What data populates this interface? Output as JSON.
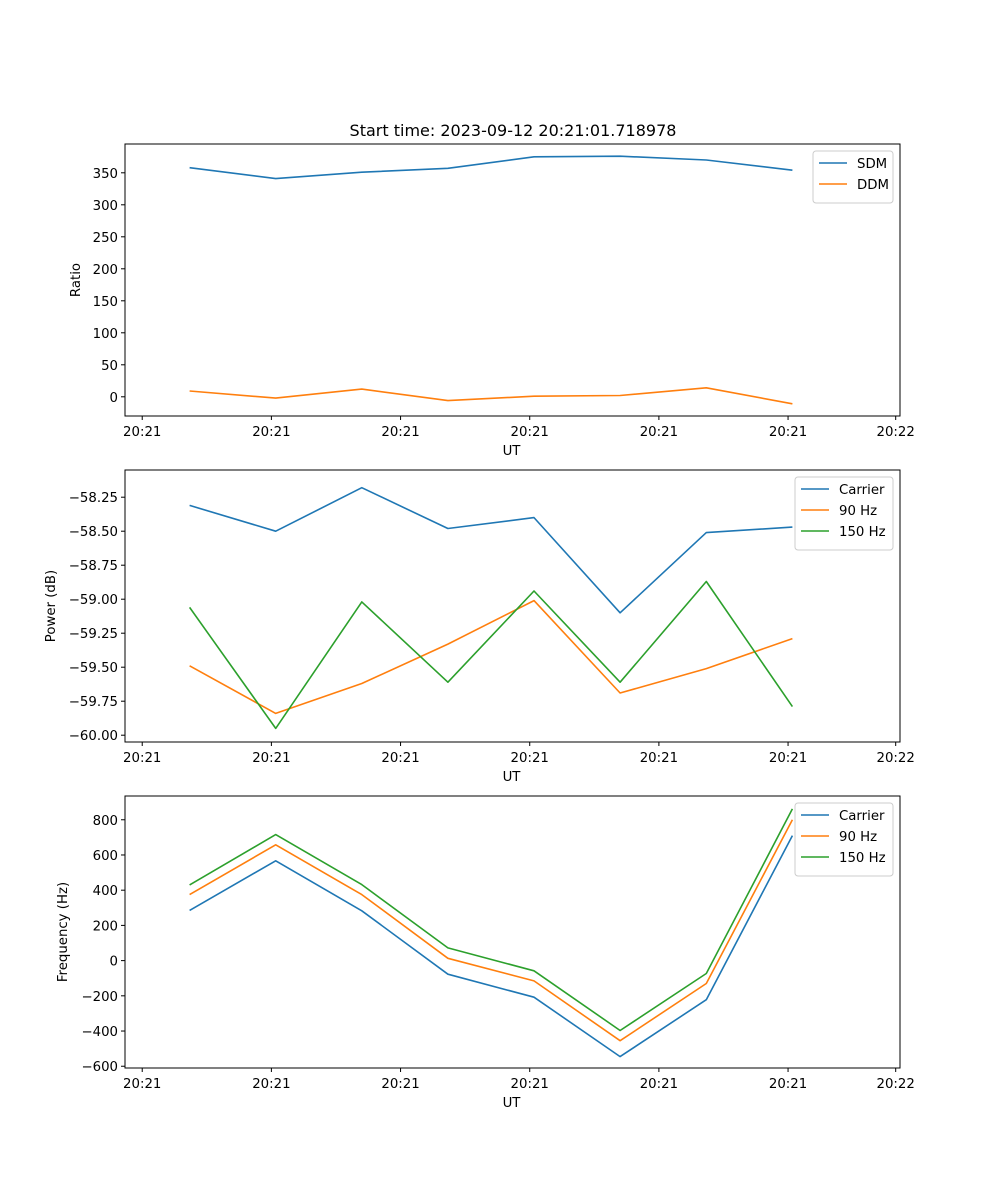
{
  "colors": {
    "series": [
      "#1f77b4",
      "#ff7f0e",
      "#2ca02c"
    ],
    "axis": "#000000",
    "legend_border": "#cccccc"
  },
  "figure": {
    "title": "Start time: 2023-09-12 20:21:01.718978"
  },
  "chart_data": [
    {
      "type": "line",
      "title": "Start time: 2023-09-12 20:21:01.718978",
      "xlabel": "UT",
      "ylabel": "Ratio",
      "x": [
        1,
        2,
        3,
        4,
        5,
        6,
        7,
        8
      ],
      "xlim": [
        0.25,
        9.25
      ],
      "xticks": [
        0.45,
        1.95,
        3.45,
        4.95,
        6.45,
        7.95,
        9.2
      ],
      "xtick_labels": [
        "20:21",
        "20:21",
        "20:21",
        "20:21",
        "20:21",
        "20:21",
        "20:22"
      ],
      "ylim": [
        -30,
        395
      ],
      "yticks": [
        0,
        50,
        100,
        150,
        200,
        250,
        300,
        350
      ],
      "ytick_labels": [
        "0",
        "50",
        "100",
        "150",
        "200",
        "250",
        "300",
        "350"
      ],
      "legend_position": "top-right",
      "series": [
        {
          "name": "SDM",
          "values": [
            358,
            341,
            351,
            357,
            375,
            376,
            370,
            354
          ]
        },
        {
          "name": "DDM",
          "values": [
            9,
            -2,
            12,
            -6,
            1,
            2,
            14,
            -11
          ]
        }
      ]
    },
    {
      "type": "line",
      "title": "",
      "xlabel": "UT",
      "ylabel": "Power (dB)",
      "x": [
        1,
        2,
        3,
        4,
        5,
        6,
        7,
        8
      ],
      "xlim": [
        0.25,
        9.25
      ],
      "xticks": [
        0.45,
        1.95,
        3.45,
        4.95,
        6.45,
        7.95,
        9.2
      ],
      "xtick_labels": [
        "20:21",
        "20:21",
        "20:21",
        "20:21",
        "20:21",
        "20:21",
        "20:22"
      ],
      "ylim": [
        -60.05,
        -58.05
      ],
      "yticks": [
        -60.0,
        -59.75,
        -59.5,
        -59.25,
        -59.0,
        -58.75,
        -58.5,
        -58.25
      ],
      "ytick_labels": [
        "−60.00",
        "−59.75",
        "−59.50",
        "−59.25",
        "−59.00",
        "−58.75",
        "−58.50",
        "−58.25"
      ],
      "legend_position": "top-right",
      "series": [
        {
          "name": "Carrier",
          "values": [
            -58.31,
            -58.5,
            -58.18,
            -58.48,
            -58.4,
            -59.1,
            -58.51,
            -58.47
          ]
        },
        {
          "name": "90 Hz",
          "values": [
            -59.49,
            -59.84,
            -59.62,
            -59.33,
            -59.01,
            -59.69,
            -59.51,
            -59.29
          ]
        },
        {
          "name": "150 Hz",
          "values": [
            -59.06,
            -59.95,
            -59.02,
            -59.61,
            -58.94,
            -59.61,
            -58.87,
            -59.79
          ]
        }
      ]
    },
    {
      "type": "line",
      "title": "",
      "xlabel": "UT",
      "ylabel": "Frequency (Hz)",
      "x": [
        1,
        2,
        3,
        4,
        5,
        6,
        7,
        8
      ],
      "xlim": [
        0.25,
        9.25
      ],
      "xticks": [
        0.45,
        1.95,
        3.45,
        4.95,
        6.45,
        7.95,
        9.2
      ],
      "xtick_labels": [
        "20:21",
        "20:21",
        "20:21",
        "20:21",
        "20:21",
        "20:21",
        "20:22"
      ],
      "ylim": [
        -610,
        935
      ],
      "yticks": [
        -600,
        -400,
        -200,
        0,
        200,
        400,
        600,
        800
      ],
      "ytick_labels": [
        "−600",
        "−400",
        "−200",
        "0",
        "200",
        "400",
        "600",
        "800"
      ],
      "legend_position": "top-right",
      "series": [
        {
          "name": "Carrier",
          "values": [
            285,
            567,
            283,
            -77,
            -208,
            -545,
            -222,
            710
          ]
        },
        {
          "name": "90 Hz",
          "values": [
            375,
            658,
            375,
            13,
            -115,
            -455,
            -130,
            800
          ]
        },
        {
          "name": "150 Hz",
          "values": [
            430,
            716,
            432,
            72,
            -58,
            -397,
            -73,
            862
          ]
        }
      ]
    }
  ]
}
